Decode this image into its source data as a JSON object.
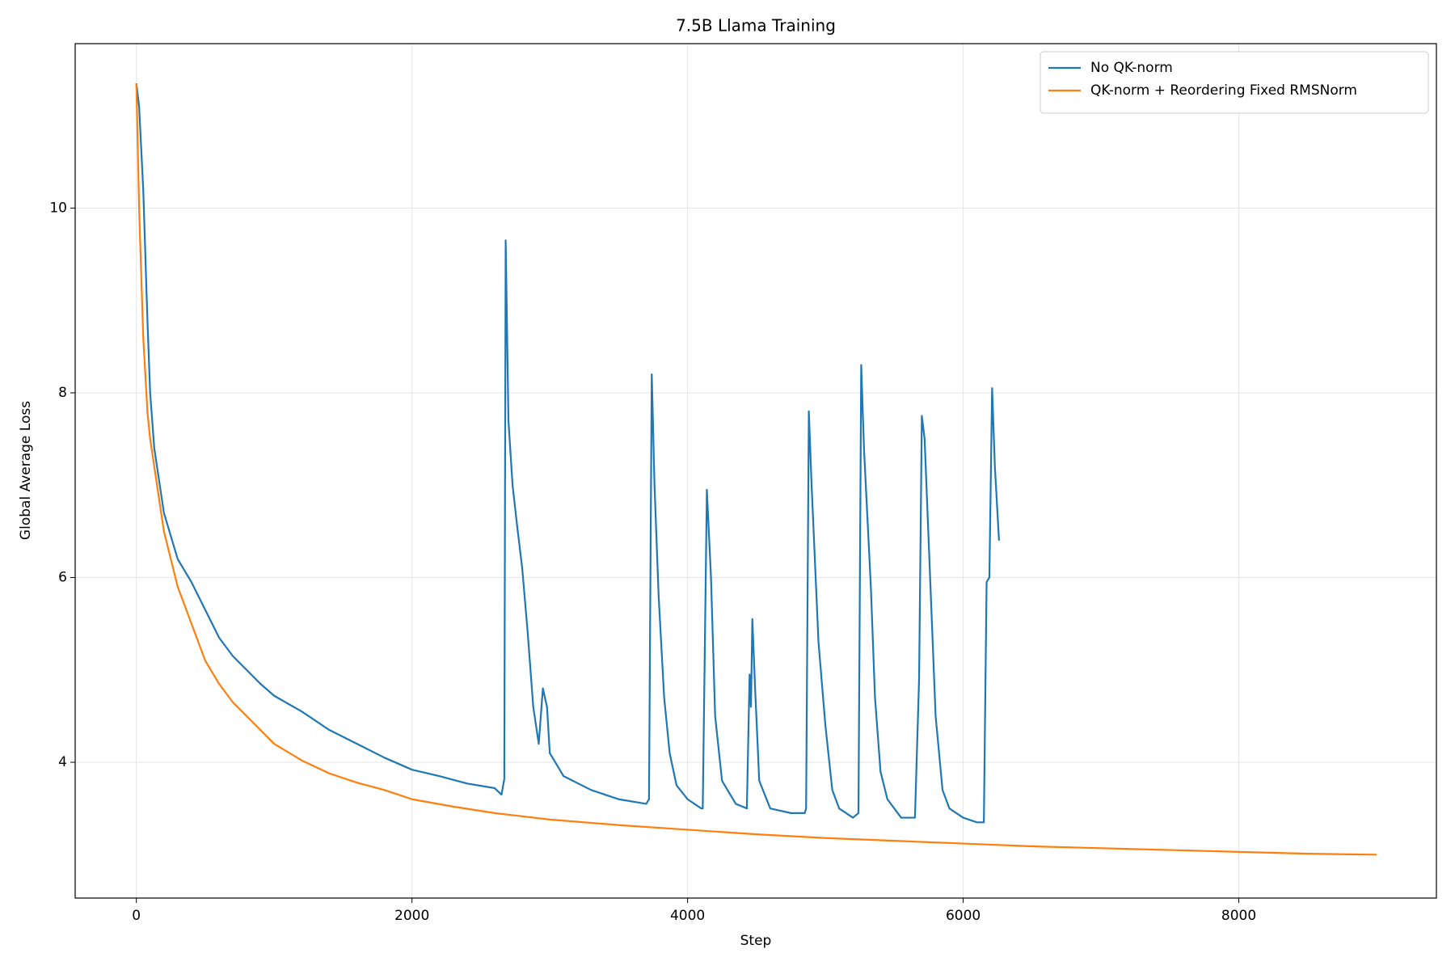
{
  "chart_data": {
    "type": "line",
    "title": "7.5B Llama Training",
    "x_label": "Step",
    "y_label": "Global Average Loss",
    "xlim": [
      -444,
      9434
    ],
    "ylim": [
      2.53,
      11.78
    ],
    "xticks": [
      0,
      2000,
      4000,
      6000,
      8000
    ],
    "yticks": [
      4,
      6,
      8,
      10
    ],
    "grid": true,
    "legend": "upper right",
    "series": [
      {
        "name": "No QK-norm",
        "color": "#1f77b4",
        "x": [
          0,
          20,
          50,
          80,
          100,
          130,
          160,
          200,
          250,
          300,
          400,
          500,
          600,
          700,
          800,
          900,
          1000,
          1200,
          1400,
          1600,
          1800,
          2000,
          2200,
          2400,
          2600,
          2650,
          2670,
          2680,
          2700,
          2730,
          2760,
          2800,
          2840,
          2880,
          2920,
          2950,
          2980,
          3000,
          3100,
          3300,
          3500,
          3700,
          3720,
          3740,
          3760,
          3790,
          3830,
          3870,
          3920,
          4000,
          4100,
          4110,
          4140,
          4170,
          4200,
          4250,
          4350,
          4430,
          4450,
          4460,
          4470,
          4490,
          4520,
          4600,
          4750,
          4850,
          4860,
          4880,
          4900,
          4950,
          5000,
          5050,
          5100,
          5200,
          5240,
          5260,
          5280,
          5300,
          5330,
          5360,
          5400,
          5450,
          5550,
          5650,
          5680,
          5700,
          5720,
          5760,
          5800,
          5850,
          5900,
          6000,
          6100,
          6150,
          6170,
          6190,
          6210,
          6230,
          6260
        ],
        "values": [
          11.35,
          11.1,
          10.2,
          8.8,
          8.0,
          7.4,
          7.1,
          6.7,
          6.45,
          6.2,
          5.95,
          5.65,
          5.35,
          5.15,
          5.0,
          4.85,
          4.72,
          4.55,
          4.35,
          4.2,
          4.05,
          3.92,
          3.85,
          3.77,
          3.72,
          3.65,
          3.82,
          9.65,
          7.7,
          7.0,
          6.6,
          6.1,
          5.4,
          4.6,
          4.2,
          4.8,
          4.6,
          4.1,
          3.85,
          3.7,
          3.6,
          3.55,
          3.6,
          8.2,
          7.0,
          5.8,
          4.7,
          4.1,
          3.75,
          3.6,
          3.5,
          3.5,
          6.95,
          6.0,
          4.5,
          3.8,
          3.55,
          3.5,
          4.95,
          4.6,
          5.55,
          4.8,
          3.8,
          3.5,
          3.45,
          3.45,
          3.5,
          7.8,
          7.0,
          5.3,
          4.4,
          3.7,
          3.5,
          3.4,
          3.45,
          8.3,
          7.4,
          6.8,
          5.9,
          4.7,
          3.9,
          3.6,
          3.4,
          3.4,
          4.9,
          7.75,
          7.5,
          6.0,
          4.5,
          3.7,
          3.5,
          3.4,
          3.35,
          3.35,
          5.95,
          6.0,
          8.05,
          7.2,
          6.4
        ]
      },
      {
        "name": "QK-norm + Reordering Fixed RMSNorm",
        "color": "#ff7f0e",
        "x": [
          0,
          20,
          50,
          80,
          100,
          150,
          200,
          250,
          300,
          400,
          500,
          600,
          700,
          800,
          900,
          1000,
          1200,
          1400,
          1600,
          1800,
          2000,
          2300,
          2600,
          3000,
          3500,
          4000,
          4500,
          5000,
          5500,
          6000,
          6500,
          7000,
          7500,
          8000,
          8500,
          9000
        ],
        "values": [
          11.35,
          10.0,
          8.6,
          7.8,
          7.5,
          7.0,
          6.5,
          6.2,
          5.9,
          5.5,
          5.1,
          4.85,
          4.65,
          4.5,
          4.35,
          4.2,
          4.02,
          3.88,
          3.78,
          3.7,
          3.6,
          3.52,
          3.45,
          3.38,
          3.32,
          3.27,
          3.22,
          3.18,
          3.15,
          3.12,
          3.09,
          3.07,
          3.05,
          3.03,
          3.01,
          3.0
        ]
      }
    ]
  }
}
